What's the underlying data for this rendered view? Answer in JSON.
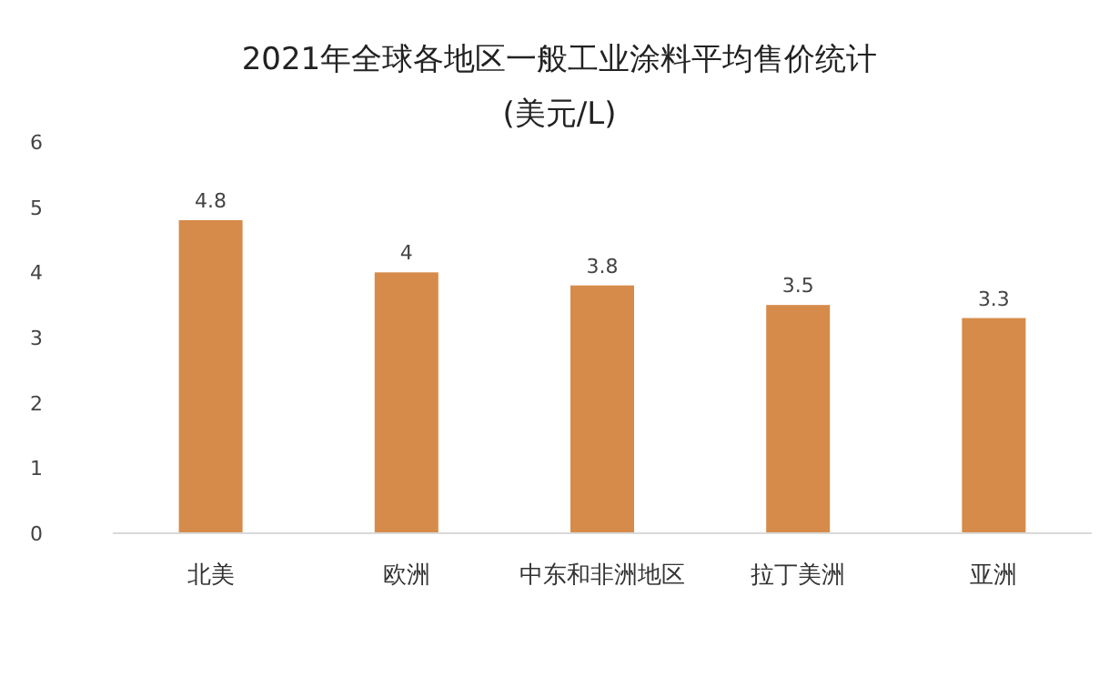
{
  "chart_data": {
    "type": "bar",
    "title": "2021年全球各地区一般工业涂料平均售价统计",
    "subtitle": "(美元/L)",
    "categories": [
      "北美",
      "欧洲",
      "中东和非洲地区",
      "拉丁美洲",
      "亚洲"
    ],
    "values": [
      4.8,
      4,
      3.8,
      3.5,
      3.3
    ],
    "color": "#d68b4a",
    "ylim": [
      0,
      6
    ],
    "yticks": [
      0,
      1,
      2,
      3,
      4,
      5,
      6
    ],
    "data_labels": true
  }
}
